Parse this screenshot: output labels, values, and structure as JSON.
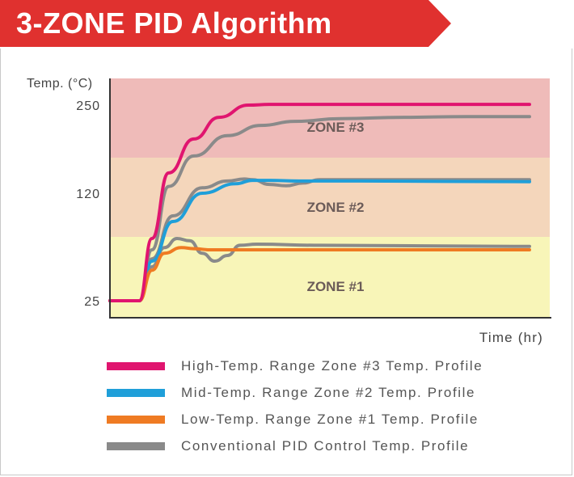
{
  "header": {
    "title": "3-ZONE PID Algorithm",
    "banner_color": "#e0312f"
  },
  "chart_data": {
    "type": "line",
    "title": "3-ZONE PID Algorithm",
    "xlabel": "Time (hr)",
    "ylabel": "Temp. (°C)",
    "y_ticks": [
      25,
      120,
      250
    ],
    "x_ticks": [],
    "zones": [
      {
        "label": "ZONE #1",
        "color": "#f8f5b8"
      },
      {
        "label": "ZONE #2",
        "color": "#f4d6bb"
      },
      {
        "label": "ZONE #3",
        "color": "#efbbb9"
      }
    ],
    "series": [
      {
        "name": "High-Temp. Range Zone #3 Temp. Profile",
        "color": "#e0156f",
        "x": [
          0,
          0.07,
          0.1,
          0.14,
          0.2,
          0.26,
          0.33,
          0.38,
          0.44,
          0.5,
          0.7,
          1.0
        ],
        "y": [
          25,
          25,
          80,
          150,
          200,
          232,
          250,
          251,
          251,
          251,
          251,
          251
        ]
      },
      {
        "name": "Mid-Temp. Range Zone #2 Temp. Profile",
        "color": "#1f9fd9",
        "x": [
          0,
          0.07,
          0.1,
          0.15,
          0.22,
          0.3,
          0.34,
          0.38,
          0.45,
          0.6,
          1.0
        ],
        "y": [
          25,
          25,
          60,
          95,
          120,
          134,
          139,
          139,
          138,
          138,
          137
        ]
      },
      {
        "name": "Low-Temp. Range Zone #1 Temp. Profile",
        "color": "#ef7b23",
        "x": [
          0,
          0.07,
          0.1,
          0.13,
          0.17,
          0.2,
          0.24,
          0.3,
          0.4,
          0.7,
          1.0
        ],
        "y": [
          25,
          25,
          52,
          67,
          72,
          71,
          70,
          70,
          70,
          70,
          70
        ]
      },
      {
        "name": "Conventional PID Control Temp. Profile",
        "color": "#8a8a8a",
        "x": [
          0,
          0.07,
          0.1,
          0.14,
          0.2,
          0.28,
          0.36,
          0.44,
          0.55,
          0.7,
          0.85,
          1.0
        ],
        "y": [
          25,
          25,
          70,
          130,
          175,
          205,
          220,
          226,
          230,
          232,
          233,
          233
        ]
      },
      {
        "name": "Conventional PID Control Temp. Profile (zone 2)",
        "color": "#8a8a8a",
        "x": [
          0,
          0.07,
          0.1,
          0.15,
          0.22,
          0.28,
          0.32,
          0.34,
          0.38,
          0.42,
          0.46,
          0.5,
          0.6,
          1.0
        ],
        "y": [
          25,
          25,
          62,
          100,
          128,
          138,
          141,
          140,
          133,
          131,
          135,
          140,
          140,
          140
        ]
      },
      {
        "name": "Conventional PID Control Temp. Profile (zone 1)",
        "color": "#8a8a8a",
        "x": [
          0,
          0.07,
          0.1,
          0.13,
          0.16,
          0.19,
          0.22,
          0.25,
          0.28,
          0.31,
          0.35,
          0.5,
          1.0
        ],
        "y": [
          25,
          25,
          55,
          72,
          80,
          78,
          67,
          60,
          65,
          74,
          75,
          74,
          73
        ]
      }
    ],
    "zone_text_color": "#6b5b58",
    "axis_color": "#333333",
    "grid": false,
    "legend_position": "bottom"
  },
  "legend": {
    "items": [
      {
        "label": "High-Temp. Range Zone #3 Temp. Profile",
        "color": "#e0156f"
      },
      {
        "label": "Mid-Temp. Range Zone #2 Temp. Profile",
        "color": "#1f9fd9"
      },
      {
        "label": "Low-Temp. Range Zone #1 Temp. Profile",
        "color": "#ef7b23"
      },
      {
        "label": "Conventional PID Control Temp. Profile",
        "color": "#8a8a8a"
      }
    ]
  }
}
